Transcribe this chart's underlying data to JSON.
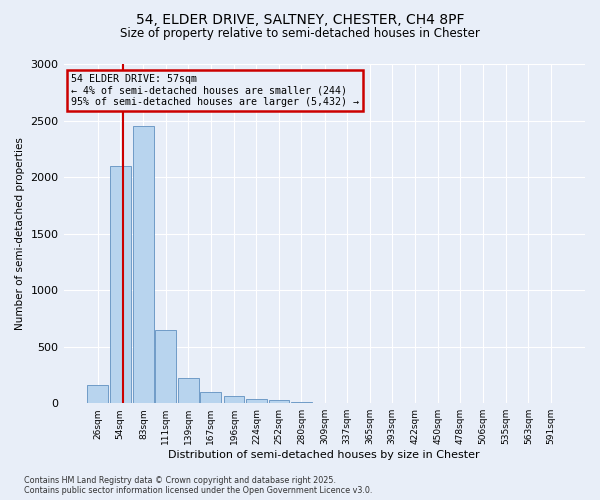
{
  "title_line1": "54, ELDER DRIVE, SALTNEY, CHESTER, CH4 8PF",
  "title_line2": "Size of property relative to semi-detached houses in Chester",
  "xlabel": "Distribution of semi-detached houses by size in Chester",
  "ylabel": "Number of semi-detached properties",
  "annotation_title": "54 ELDER DRIVE: 57sqm",
  "annotation_line2": "← 4% of semi-detached houses are smaller (244)",
  "annotation_line3": "95% of semi-detached houses are larger (5,432) →",
  "footer_line1": "Contains HM Land Registry data © Crown copyright and database right 2025.",
  "footer_line2": "Contains public sector information licensed under the Open Government Licence v3.0.",
  "property_size": 57,
  "bins": [
    26,
    54,
    83,
    111,
    139,
    167,
    196,
    224,
    252,
    280,
    309,
    337,
    365,
    393,
    422,
    450,
    478,
    506,
    535,
    563,
    591
  ],
  "values": [
    160,
    2100,
    2450,
    650,
    220,
    100,
    60,
    40,
    30,
    15,
    5,
    2,
    1,
    1,
    0,
    0,
    0,
    0,
    0,
    0,
    0
  ],
  "bar_color": "#b8d4ee",
  "bar_edge_color": "#6090c0",
  "redline_color": "#cc0000",
  "background_color": "#e8eef8",
  "ylim": [
    0,
    3000
  ],
  "yticks": [
    0,
    500,
    1000,
    1500,
    2000,
    2500,
    3000
  ]
}
